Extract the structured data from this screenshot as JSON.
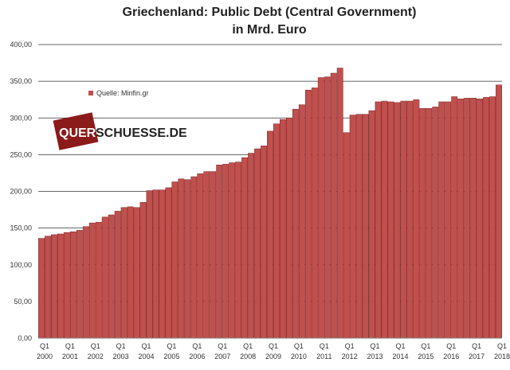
{
  "chart_data": {
    "type": "bar",
    "title_line1": "Griechenland: Public Debt (Central Government)",
    "title_line2": "in Mrd. Euro",
    "legend_label": "Quelle: Minfin.gr",
    "bar_color": "#c0504d",
    "bar_edge_color": "#7a2020",
    "ylim": [
      0,
      400
    ],
    "ytick_labels": [
      "0,00",
      "50,00",
      "100,00",
      "150,00",
      "200,00",
      "250,00",
      "300,00",
      "350,00",
      "400,00"
    ],
    "xtick_quarter": "Q1",
    "xtick_years": [
      "2000",
      "2001",
      "2002",
      "2003",
      "2004",
      "2005",
      "2006",
      "2007",
      "2008",
      "2009",
      "2010",
      "2011",
      "2012",
      "2013",
      "2014",
      "2015",
      "2016",
      "2017",
      "2018"
    ],
    "values": [
      136,
      139,
      141,
      142,
      144,
      145,
      147,
      152,
      157,
      158,
      165,
      168,
      173,
      178,
      179,
      178,
      185,
      201,
      202,
      202,
      205,
      213,
      217,
      216,
      220,
      224,
      227,
      227,
      236,
      237,
      239,
      240,
      246,
      252,
      258,
      262,
      282,
      292,
      298,
      300,
      312,
      318,
      338,
      341,
      355,
      356,
      361,
      368,
      280,
      304,
      305,
      305,
      310,
      322,
      323,
      322,
      321,
      323,
      323,
      325,
      313,
      313,
      315,
      322,
      322,
      329,
      326,
      327,
      327,
      326,
      328,
      329,
      345
    ]
  },
  "watermark": {
    "badge_text": "QUER",
    "rest_text": "SCHUESSE.DE",
    "badge_color": "#8b1a1a"
  }
}
